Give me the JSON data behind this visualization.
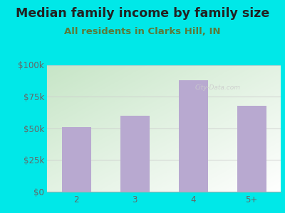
{
  "title": "Median family income by family size",
  "subtitle": "All residents in Clarks Hill, IN",
  "categories": [
    "2",
    "3",
    "4",
    "5+"
  ],
  "values": [
    51000,
    60000,
    88000,
    68000
  ],
  "bar_color": "#b8a9d0",
  "outer_bg": "#00e8e8",
  "grad_top_left": "#c8e6c8",
  "grad_bottom_right": "#ffffff",
  "title_color": "#222222",
  "subtitle_color": "#5a7a3a",
  "tick_color": "#666666",
  "grid_color": "#cccccc",
  "ylim": [
    0,
    100000
  ],
  "yticks": [
    0,
    25000,
    50000,
    75000,
    100000
  ],
  "ytick_labels": [
    "$0",
    "$25k",
    "$50k",
    "$75k",
    "$100k"
  ],
  "title_fontsize": 12.5,
  "subtitle_fontsize": 9.5,
  "tick_fontsize": 8.5,
  "watermark": "City-Data.com",
  "watermark_color": "#cccccc"
}
